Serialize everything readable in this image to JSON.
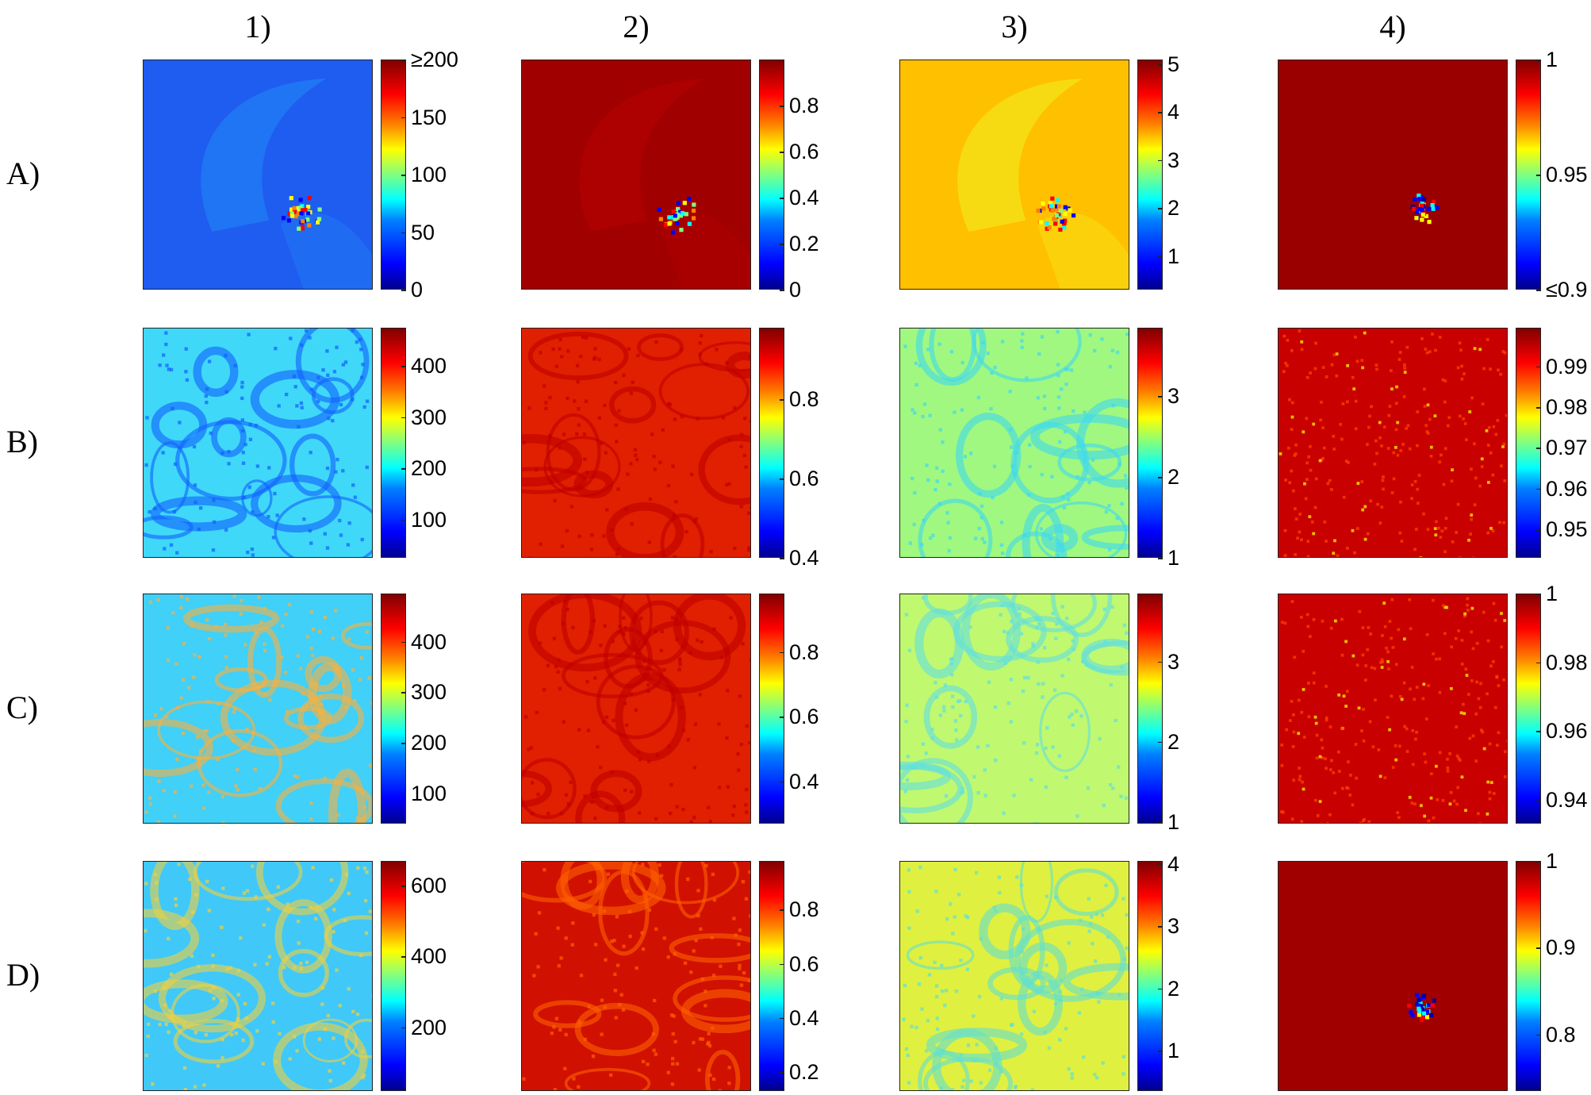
{
  "chart_data": {
    "type": "heatmap",
    "column_labels": [
      "1)",
      "2)",
      "3)",
      "4)"
    ],
    "row_labels": [
      "A)",
      "B)",
      "C)",
      "D)"
    ],
    "colormap": [
      "#00008f",
      "#0000ff",
      "#0080ff",
      "#00ffff",
      "#80ff80",
      "#ffff00",
      "#ff8000",
      "#ff0000",
      "#800000"
    ],
    "panels": [
      {
        "row": "A)",
        "col": "1)",
        "clim": [
          0,
          200
        ],
        "ticks": [
          {
            "v": 0,
            "t": "0"
          },
          {
            "v": 50,
            "t": "50"
          },
          {
            "v": 100,
            "t": "100"
          },
          {
            "v": 150,
            "t": "150"
          },
          {
            "v": 200,
            "t": "≥200"
          }
        ],
        "base": "#1f5cf0",
        "pattern": "vortex-a",
        "accent": "#1f8af5"
      },
      {
        "row": "A)",
        "col": "2)",
        "clim": [
          0,
          1
        ],
        "ticks": [
          {
            "v": 0,
            "t": "0"
          },
          {
            "v": 0.2,
            "t": "0.2"
          },
          {
            "v": 0.4,
            "t": "0.4"
          },
          {
            "v": 0.6,
            "t": "0.6"
          },
          {
            "v": 0.8,
            "t": "0.8"
          }
        ],
        "base": "#a00000",
        "pattern": "vortex-a",
        "accent": "#b80000"
      },
      {
        "row": "A)",
        "col": "3)",
        "clim": [
          0.3,
          5.1
        ],
        "ticks": [
          {
            "v": 1,
            "t": "1"
          },
          {
            "v": 2,
            "t": "2"
          },
          {
            "v": 3,
            "t": "3"
          },
          {
            "v": 4,
            "t": "4"
          },
          {
            "v": 5,
            "t": "5"
          }
        ],
        "base": "#ffc000",
        "pattern": "vortex-a",
        "accent": "#f0f020"
      },
      {
        "row": "A)",
        "col": "4)",
        "clim": [
          0.9,
          1.0
        ],
        "ticks": [
          {
            "v": 0.9,
            "t": "≤0.9"
          },
          {
            "v": 0.95,
            "t": "0.95"
          },
          {
            "v": 1.0,
            "t": "1"
          }
        ],
        "base": "#9a0000",
        "pattern": "speck",
        "accent": "#a80000"
      },
      {
        "row": "B)",
        "col": "1)",
        "clim": [
          25,
          475
        ],
        "ticks": [
          {
            "v": 100,
            "t": "100"
          },
          {
            "v": 200,
            "t": "200"
          },
          {
            "v": 300,
            "t": "300"
          },
          {
            "v": 400,
            "t": "400"
          }
        ],
        "base": "#40d8f8",
        "pattern": "turb",
        "accent": "#1060ff"
      },
      {
        "row": "B)",
        "col": "2)",
        "clim": [
          0.4,
          0.98
        ],
        "ticks": [
          {
            "v": 0.4,
            "t": "0.4"
          },
          {
            "v": 0.6,
            "t": "0.6"
          },
          {
            "v": 0.8,
            "t": "0.8"
          }
        ],
        "base": "#e02000",
        "pattern": "turb",
        "accent": "#c00000"
      },
      {
        "row": "B)",
        "col": "3)",
        "clim": [
          1,
          3.85
        ],
        "ticks": [
          {
            "v": 1,
            "t": "1"
          },
          {
            "v": 2,
            "t": "2"
          },
          {
            "v": 3,
            "t": "3"
          }
        ],
        "base": "#a0f880",
        "pattern": "turb",
        "accent": "#40d8f0"
      },
      {
        "row": "B)",
        "col": "4)",
        "clim": [
          0.943,
          0.9995
        ],
        "ticks": [
          {
            "v": 0.95,
            "t": "0.95"
          },
          {
            "v": 0.96,
            "t": "0.96"
          },
          {
            "v": 0.97,
            "t": "0.97"
          },
          {
            "v": 0.98,
            "t": "0.98"
          },
          {
            "v": 0.99,
            "t": "0.99"
          }
        ],
        "base": "#c80000",
        "pattern": "noise",
        "accent": "#ff4000"
      },
      {
        "row": "C)",
        "col": "1)",
        "clim": [
          40,
          495
        ],
        "ticks": [
          {
            "v": 100,
            "t": "100"
          },
          {
            "v": 200,
            "t": "200"
          },
          {
            "v": 300,
            "t": "300"
          },
          {
            "v": 400,
            "t": "400"
          }
        ],
        "base": "#40d0f8",
        "pattern": "turb",
        "accent": "#f8b040"
      },
      {
        "row": "C)",
        "col": "2)",
        "clim": [
          0.27,
          0.98
        ],
        "ticks": [
          {
            "v": 0.4,
            "t": "0.4"
          },
          {
            "v": 0.6,
            "t": "0.6"
          },
          {
            "v": 0.8,
            "t": "0.8"
          }
        ],
        "base": "#e02000",
        "pattern": "turb",
        "accent": "#c00000"
      },
      {
        "row": "C)",
        "col": "3)",
        "clim": [
          0.98,
          3.85
        ],
        "ticks": [
          {
            "v": 1,
            "t": "1"
          },
          {
            "v": 2,
            "t": "2"
          },
          {
            "v": 3,
            "t": "3"
          }
        ],
        "base": "#c0f870",
        "pattern": "turb",
        "accent": "#60e0e0"
      },
      {
        "row": "C)",
        "col": "4)",
        "clim": [
          0.933,
          1.0
        ],
        "ticks": [
          {
            "v": 0.94,
            "t": "0.94"
          },
          {
            "v": 0.96,
            "t": "0.96"
          },
          {
            "v": 0.98,
            "t": "0.98"
          },
          {
            "v": 1.0,
            "t": "1"
          }
        ],
        "base": "#c80000",
        "pattern": "noise",
        "accent": "#ff4000"
      },
      {
        "row": "D)",
        "col": "1)",
        "clim": [
          20,
          670
        ],
        "ticks": [
          {
            "v": 200,
            "t": "200"
          },
          {
            "v": 400,
            "t": "400"
          },
          {
            "v": 600,
            "t": "600"
          }
        ],
        "base": "#40c8f8",
        "pattern": "turb",
        "accent": "#f0d040"
      },
      {
        "row": "D)",
        "col": "2)",
        "clim": [
          0.13,
          0.98
        ],
        "ticks": [
          {
            "v": 0.2,
            "t": "0.2"
          },
          {
            "v": 0.4,
            "t": "0.4"
          },
          {
            "v": 0.6,
            "t": "0.6"
          },
          {
            "v": 0.8,
            "t": "0.8"
          }
        ],
        "base": "#d01000",
        "pattern": "turb",
        "accent": "#ff6000"
      },
      {
        "row": "D)",
        "col": "3)",
        "clim": [
          0.35,
          4.05
        ],
        "ticks": [
          {
            "v": 1,
            "t": "1"
          },
          {
            "v": 2,
            "t": "2"
          },
          {
            "v": 3,
            "t": "3"
          },
          {
            "v": 4,
            "t": "4"
          }
        ],
        "base": "#e0f040",
        "pattern": "turb",
        "accent": "#60e0d0"
      },
      {
        "row": "D)",
        "col": "4)",
        "clim": [
          0.735,
          1.0
        ],
        "ticks": [
          {
            "v": 0.8,
            "t": "0.8"
          },
          {
            "v": 0.9,
            "t": "0.9"
          },
          {
            "v": 1.0,
            "t": "1"
          }
        ],
        "base": "#a00000",
        "pattern": "speck",
        "accent": "#b00000"
      }
    ]
  }
}
